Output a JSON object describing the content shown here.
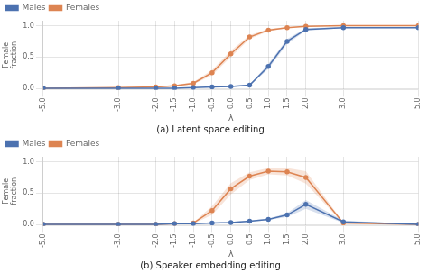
{
  "chart_data": [
    {
      "type": "line",
      "title": "(a) Latent space editing",
      "xlabel": "λ",
      "ylabel": "Female\nfraction",
      "x": [
        -5.0,
        -3.0,
        -2.0,
        -1.5,
        -1.0,
        -0.5,
        0.0,
        0.5,
        1.0,
        1.5,
        2.0,
        3.0,
        5.0
      ],
      "series": [
        {
          "name": "Males",
          "color": "#4c72b0",
          "marker": "circle",
          "line_style": "solid",
          "values": [
            0.0,
            0.0,
            0.0,
            0.0,
            0.01,
            0.02,
            0.03,
            0.05,
            0.35,
            0.75,
            0.94,
            0.97,
            0.97
          ],
          "errors": [
            0.0,
            0.0,
            0.0,
            0.0,
            0.005,
            0.005,
            0.01,
            0.01,
            0.04,
            0.04,
            0.02,
            0.01,
            0.01
          ]
        },
        {
          "name": "Females",
          "color": "#dd8452",
          "marker": "circle",
          "line_style": "solid",
          "values": [
            0.0,
            0.01,
            0.02,
            0.04,
            0.08,
            0.25,
            0.55,
            0.82,
            0.93,
            0.97,
            0.99,
            1.0,
            1.0
          ],
          "errors": [
            0.0,
            0.005,
            0.005,
            0.01,
            0.02,
            0.04,
            0.05,
            0.03,
            0.02,
            0.01,
            0.005,
            0.0,
            0.0
          ]
        }
      ],
      "xlim": [
        -5.0,
        5.0
      ],
      "xticks": [
        {
          "value": -5.0,
          "label": "-5.0"
        },
        {
          "value": -3.0,
          "label": "-3.0"
        },
        {
          "value": -2.0,
          "label": "-2.0"
        },
        {
          "value": -1.5,
          "label": "-1.5"
        },
        {
          "value": -1.0,
          "label": "-1.0"
        },
        {
          "value": -0.5,
          "label": "-0.5"
        },
        {
          "value": 0.0,
          "label": "0.0"
        },
        {
          "value": 0.5,
          "label": "0.5"
        },
        {
          "value": 1.0,
          "label": "1.0"
        },
        {
          "value": 1.5,
          "label": "1.5"
        },
        {
          "value": 2.0,
          "label": "2.0"
        },
        {
          "value": 3.0,
          "label": "3.0"
        },
        {
          "value": 5.0,
          "label": "5.0"
        }
      ],
      "ylim": [
        -0.02,
        1.08
      ],
      "yticks": [
        {
          "value": 0.0,
          "label": "0.0"
        },
        {
          "value": 0.5,
          "label": "0.5"
        },
        {
          "value": 1.0,
          "label": "1.0"
        }
      ],
      "grid": true,
      "legend": "upper left"
    },
    {
      "type": "line",
      "title": "(b) Speaker embedding editing",
      "xlabel": "λ",
      "ylabel": "Female\nfraction",
      "x": [
        -5.0,
        -3.0,
        -2.0,
        -1.5,
        -1.0,
        -0.5,
        0.0,
        0.5,
        1.0,
        1.5,
        2.0,
        3.0,
        5.0
      ],
      "series": [
        {
          "name": "Males",
          "color": "#4c72b0",
          "marker": "circle",
          "line_style": "solid",
          "values": [
            0.0,
            0.0,
            0.0,
            0.01,
            0.01,
            0.02,
            0.03,
            0.05,
            0.08,
            0.15,
            0.32,
            0.04,
            0.0
          ],
          "errors": [
            0.0,
            0.0,
            0.0,
            0.0,
            0.005,
            0.005,
            0.01,
            0.01,
            0.01,
            0.03,
            0.07,
            0.02,
            0.0
          ]
        },
        {
          "name": "Females",
          "color": "#dd8452",
          "marker": "circle",
          "line_style": "solid",
          "values": [
            0.0,
            0.0,
            0.0,
            0.01,
            0.02,
            0.22,
            0.57,
            0.77,
            0.85,
            0.84,
            0.75,
            0.02,
            0.0
          ],
          "errors": [
            0.0,
            0.0,
            0.0,
            0.005,
            0.01,
            0.07,
            0.09,
            0.06,
            0.05,
            0.06,
            0.1,
            0.01,
            0.0
          ]
        }
      ],
      "xlim": [
        -5.0,
        5.0
      ],
      "xticks": [
        {
          "value": -5.0,
          "label": "-5.0"
        },
        {
          "value": -3.0,
          "label": "-3.0"
        },
        {
          "value": -2.0,
          "label": "-2.0"
        },
        {
          "value": -1.5,
          "label": "-1.5"
        },
        {
          "value": -1.0,
          "label": "-1.0"
        },
        {
          "value": -0.5,
          "label": "-0.5"
        },
        {
          "value": 0.0,
          "label": "0.0"
        },
        {
          "value": 0.5,
          "label": "0.5"
        },
        {
          "value": 1.0,
          "label": "1.0"
        },
        {
          "value": 1.5,
          "label": "1.5"
        },
        {
          "value": 2.0,
          "label": "2.0"
        },
        {
          "value": 3.0,
          "label": "3.0"
        },
        {
          "value": 5.0,
          "label": "5.0"
        }
      ],
      "ylim": [
        -0.02,
        1.08
      ],
      "yticks": [
        {
          "value": 0.0,
          "label": "0.0"
        },
        {
          "value": 0.5,
          "label": "0.5"
        },
        {
          "value": 1.0,
          "label": "1.0"
        }
      ],
      "grid": true,
      "legend": "upper left"
    }
  ]
}
